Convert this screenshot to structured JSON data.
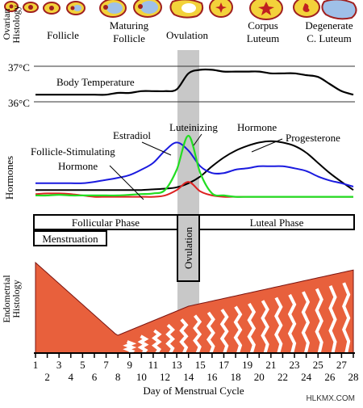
{
  "side_labels": {
    "ovarian_line1": "Ovarian",
    "ovarian_line2": "Histology",
    "hormones": "Hormones",
    "endometrial_line1": "Endometrial",
    "endometrial_line2": "Histology"
  },
  "ovary_stages": {
    "follicle": "Follicle",
    "maturing_line1": "Maturing",
    "maturing_line2": "Follicle",
    "ovulation": "Ovulation",
    "corpus_line1": "Corpus",
    "corpus_line2": "Luteum",
    "degenerate_line1": "Degenerate",
    "degenerate_line2": "C. Luteum"
  },
  "temperature": {
    "label": "Body Temperature",
    "tick_37": "37°C",
    "tick_36": "36°C"
  },
  "hormone_labels": {
    "estradiol": "Estradiol",
    "lh_line1": "Luteinizing",
    "lh_line2": "Hormone",
    "fsh_line1": "Follicle-Stimulating",
    "fsh_line2": "Hormone",
    "progesterone": "Progesterone"
  },
  "colors": {
    "estradiol": "#1a1adf",
    "lh": "#22dd22",
    "fsh": "#dd2222",
    "progesterone": "#000000",
    "temperature": "#000000",
    "ovulation_band": "#c8c8c8",
    "endometrium": "#e8603c",
    "endometrium_dark": "#7a1410"
  },
  "phases": {
    "follicular": "Follicular Phase",
    "luteal": "Luteal Phase",
    "menstruation": "Menstruation",
    "ovulation": "Ovulation"
  },
  "x_axis": {
    "title": "Day of Menstrual Cycle",
    "odd_days": [
      "1",
      "3",
      "5",
      "7",
      "9",
      "11",
      "13",
      "15",
      "17",
      "19",
      "21",
      "23",
      "25",
      "27"
    ],
    "even_days": [
      "2",
      "4",
      "6",
      "8",
      "10",
      "12",
      "14",
      "16",
      "18",
      "20",
      "22",
      "24",
      "26",
      "28"
    ]
  },
  "watermark": "HLKMX.COM",
  "chart_data": {
    "type": "line",
    "x": [
      1,
      2,
      3,
      4,
      5,
      6,
      7,
      8,
      9,
      10,
      11,
      12,
      13,
      14,
      15,
      16,
      17,
      18,
      19,
      20,
      21,
      22,
      23,
      24,
      25,
      26,
      27,
      28
    ],
    "xlabel": "Day of Menstrual Cycle",
    "series": [
      {
        "name": "Body Temperature",
        "values": [
          36.2,
          36.2,
          36.2,
          36.2,
          36.2,
          36.2,
          36.2,
          36.25,
          36.25,
          36.3,
          36.3,
          36.3,
          36.35,
          36.8,
          36.9,
          36.9,
          36.85,
          36.85,
          36.85,
          36.85,
          36.8,
          36.8,
          36.8,
          36.75,
          36.7,
          36.5,
          36.3,
          36.2
        ]
      },
      {
        "name": "Estradiol",
        "values": [
          0.3,
          0.3,
          0.3,
          0.3,
          0.3,
          0.32,
          0.35,
          0.38,
          0.42,
          0.5,
          0.6,
          0.78,
          0.9,
          0.78,
          0.55,
          0.45,
          0.45,
          0.5,
          0.52,
          0.55,
          0.55,
          0.55,
          0.52,
          0.48,
          0.4,
          0.34,
          0.3,
          0.25
        ]
      },
      {
        "name": "Luteinizing Hormone",
        "values": [
          0.12,
          0.12,
          0.13,
          0.12,
          0.12,
          0.12,
          0.12,
          0.12,
          0.13,
          0.14,
          0.15,
          0.2,
          0.5,
          1.0,
          0.45,
          0.15,
          0.12,
          0.1,
          0.1,
          0.1,
          0.1,
          0.1,
          0.1,
          0.1,
          0.1,
          0.1,
          0.1,
          0.1
        ]
      },
      {
        "name": "Follicle-Stimulating Hormone",
        "values": [
          0.14,
          0.15,
          0.15,
          0.14,
          0.12,
          0.1,
          0.1,
          0.1,
          0.1,
          0.1,
          0.1,
          0.12,
          0.2,
          0.32,
          0.18,
          0.12,
          0.1,
          0.1,
          0.1,
          0.1,
          0.1,
          0.1,
          0.1,
          0.1,
          0.1,
          0.1,
          0.1,
          0.1
        ]
      },
      {
        "name": "Progesterone",
        "values": [
          0.2,
          0.2,
          0.2,
          0.2,
          0.2,
          0.2,
          0.2,
          0.2,
          0.2,
          0.2,
          0.21,
          0.22,
          0.24,
          0.3,
          0.4,
          0.55,
          0.68,
          0.78,
          0.85,
          0.9,
          0.92,
          0.9,
          0.85,
          0.75,
          0.6,
          0.45,
          0.32,
          0.2
        ]
      }
    ],
    "temperature_ylim": [
      36,
      37
    ]
  }
}
